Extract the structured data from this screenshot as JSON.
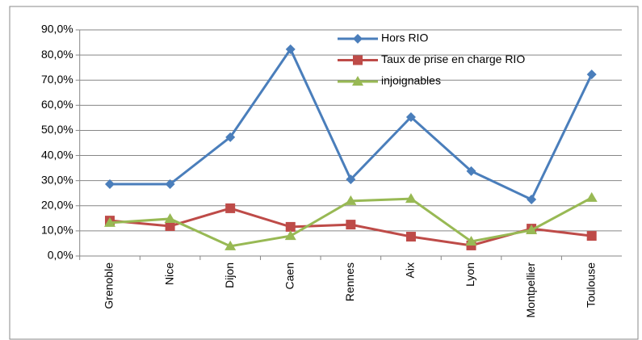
{
  "chart_data": {
    "type": "line",
    "categories": [
      "Grenoble",
      "Nice",
      "Dijon",
      "Caen",
      "Rennes",
      "Aix",
      "Lyon",
      "Montpellier",
      "Toulouse"
    ],
    "series": [
      {
        "name": "Hors RIO",
        "color": "#4a7ebb",
        "marker": "diamond",
        "values": [
          28.6,
          28.6,
          47.3,
          82.3,
          30.5,
          55.3,
          33.8,
          22.5,
          72.3
        ]
      },
      {
        "name": "Taux de prise en charge RIO",
        "color": "#be4b48",
        "marker": "square",
        "values": [
          14.1,
          11.9,
          19.0,
          11.6,
          12.5,
          7.7,
          4.2,
          10.9,
          8.0
        ]
      },
      {
        "name": "injoignables",
        "color": "#98b954",
        "marker": "triangle",
        "values": [
          13.2,
          14.8,
          3.9,
          8.0,
          21.9,
          22.8,
          5.8,
          10.3,
          23.2
        ]
      }
    ],
    "ylim": [
      0,
      90
    ],
    "yticks": [
      {
        "value": 0,
        "label": "0,0%"
      },
      {
        "value": 10,
        "label": "10,0%"
      },
      {
        "value": 20,
        "label": "20,0%"
      },
      {
        "value": 30,
        "label": "30,0%"
      },
      {
        "value": 40,
        "label": "40,0%"
      },
      {
        "value": 50,
        "label": "50,0%"
      },
      {
        "value": 60,
        "label": "60,0%"
      },
      {
        "value": 70,
        "label": "70,0%"
      },
      {
        "value": 80,
        "label": "80,0%"
      },
      {
        "value": 90,
        "label": "90,0%"
      }
    ],
    "grid": true,
    "legend": "top-right"
  }
}
